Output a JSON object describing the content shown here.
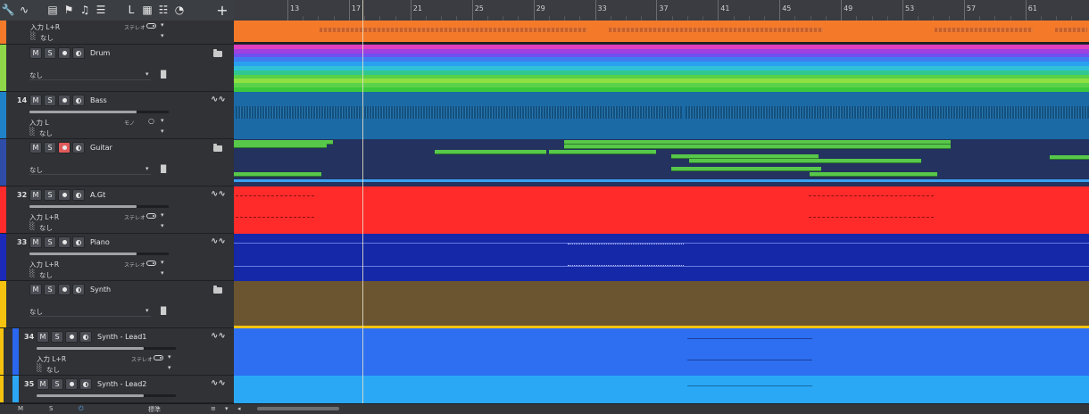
{
  "toolbar": {
    "tools": [
      "wrench-icon",
      "automation-icon",
      "layout-icon",
      "flag-icon",
      "key-icon",
      "notes-icon",
      "lyric-icon",
      "video-icon",
      "mix-icon",
      "clock-icon"
    ],
    "add_label": "+"
  },
  "ruler": {
    "bars": [
      "13",
      "17",
      "21",
      "25",
      "29",
      "33",
      "37",
      "41",
      "45",
      "49",
      "53",
      "57",
      "61"
    ]
  },
  "tracks": [
    {
      "number": "",
      "name": "",
      "input": "入力 L+R",
      "channel": "ステレオ",
      "output": "なし",
      "color": "#f47a2a",
      "type": "audio",
      "collapsed_top": true
    },
    {
      "number": "",
      "name": "Drum",
      "output": "なし",
      "color": "#8ed64a",
      "type": "folder"
    },
    {
      "number": "14",
      "name": "Bass",
      "input": "入力 L",
      "channel": "モノ",
      "output": "なし",
      "color": "#1f82c8",
      "type": "audio"
    },
    {
      "number": "",
      "name": "Guitar",
      "output": "なし",
      "color": "#2f4da8",
      "type": "folder",
      "rec_on": true
    },
    {
      "number": "32",
      "name": "A.Gt",
      "input": "入力 L+R",
      "channel": "ステレオ",
      "output": "なし",
      "color": "#ff2b2b",
      "type": "audio"
    },
    {
      "number": "33",
      "name": "Piano",
      "input": "入力 L+R",
      "channel": "ステレオ",
      "output": "なし",
      "color": "#1b2ab8",
      "type": "audio"
    },
    {
      "number": "",
      "name": "Synth",
      "output": "なし",
      "color": "#f4c20f",
      "type": "folder"
    },
    {
      "number": "34",
      "name": "Synth - Lead1",
      "input": "入力 L+R",
      "channel": "ステレオ",
      "output": "なし",
      "color": "#2b66ee",
      "type": "audio"
    },
    {
      "number": "35",
      "name": "Synth - Lead2",
      "input": "",
      "channel": "",
      "output": "",
      "color": "#2ba6f4",
      "type": "audio"
    }
  ],
  "buttons": {
    "mute": "M",
    "solo": "S"
  },
  "bottom": {
    "mute": "M",
    "solo": "S",
    "preset": "標準"
  },
  "colors": {
    "orange": "#f47a2a",
    "drum": "#7fd84a",
    "bass_bg": "#1b6aa6",
    "guitar_bg": "#23325e",
    "agt": "#ff2b2b",
    "piano": "#1428a8",
    "synth": "#6a5530",
    "lead1": "#2d6ff0",
    "lead2": "#2aa8f6",
    "midi_green": "#57c84a"
  }
}
